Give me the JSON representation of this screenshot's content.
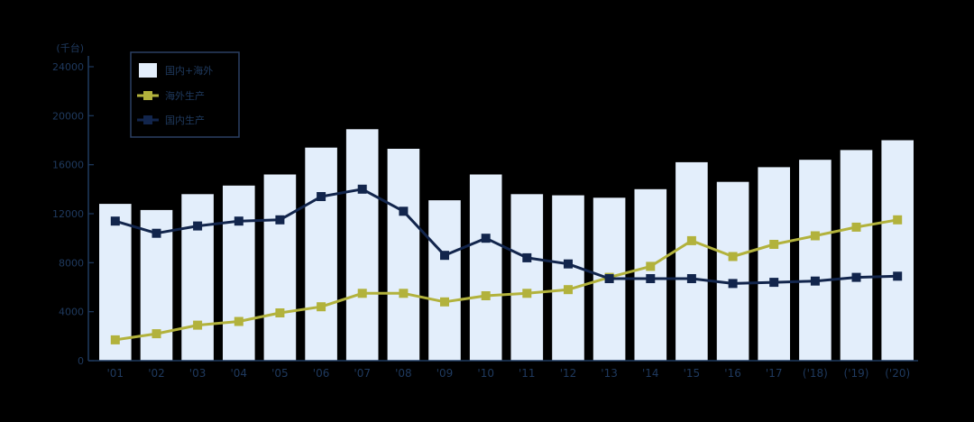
{
  "chart_data": {
    "type": "bar",
    "title": "",
    "unit_label": "(千台)",
    "xlabel": "",
    "ylabel": "",
    "ylim": [
      0,
      24000
    ],
    "yticks": [
      0,
      4000,
      8000,
      12000,
      16000,
      20000,
      24000
    ],
    "grid": false,
    "legend_position": "top-left",
    "categories": [
      "'01",
      "'02",
      "'03",
      "'04",
      "'05",
      "'06",
      "'07",
      "'08",
      "'09",
      "'10",
      "'11",
      "'12",
      "'13",
      "'14",
      "'15",
      "'16",
      "'17",
      "('18)",
      "('19)",
      "('20)"
    ],
    "series": [
      {
        "name": "国内+海外",
        "type": "bar",
        "color": "#e3eefb",
        "values": [
          12800,
          12300,
          13600,
          14300,
          15200,
          17400,
          18900,
          17300,
          13100,
          15200,
          13600,
          13500,
          13300,
          14000,
          16200,
          14600,
          15800,
          16400,
          17200,
          18000
        ]
      },
      {
        "name": "海外生产",
        "type": "line",
        "color": "#b2b23c",
        "values": [
          1700,
          2200,
          2900,
          3200,
          3900,
          4400,
          5500,
          5500,
          4800,
          5300,
          5500,
          5800,
          6800,
          7700,
          9800,
          8500,
          9500,
          10200,
          10900,
          11500
        ]
      },
      {
        "name": "国内生产",
        "type": "line",
        "color": "#12254c",
        "values": [
          11400,
          10400,
          11000,
          11400,
          11500,
          13400,
          14000,
          12200,
          8600,
          10000,
          8400,
          7900,
          6700,
          6700,
          6700,
          6300,
          6400,
          6500,
          6800,
          6900
        ]
      }
    ]
  },
  "colors": {
    "background": "#000000",
    "axis": "#1f3a5f",
    "tick_text": "#1f3a5f",
    "legend_border": "#2a3f63"
  }
}
